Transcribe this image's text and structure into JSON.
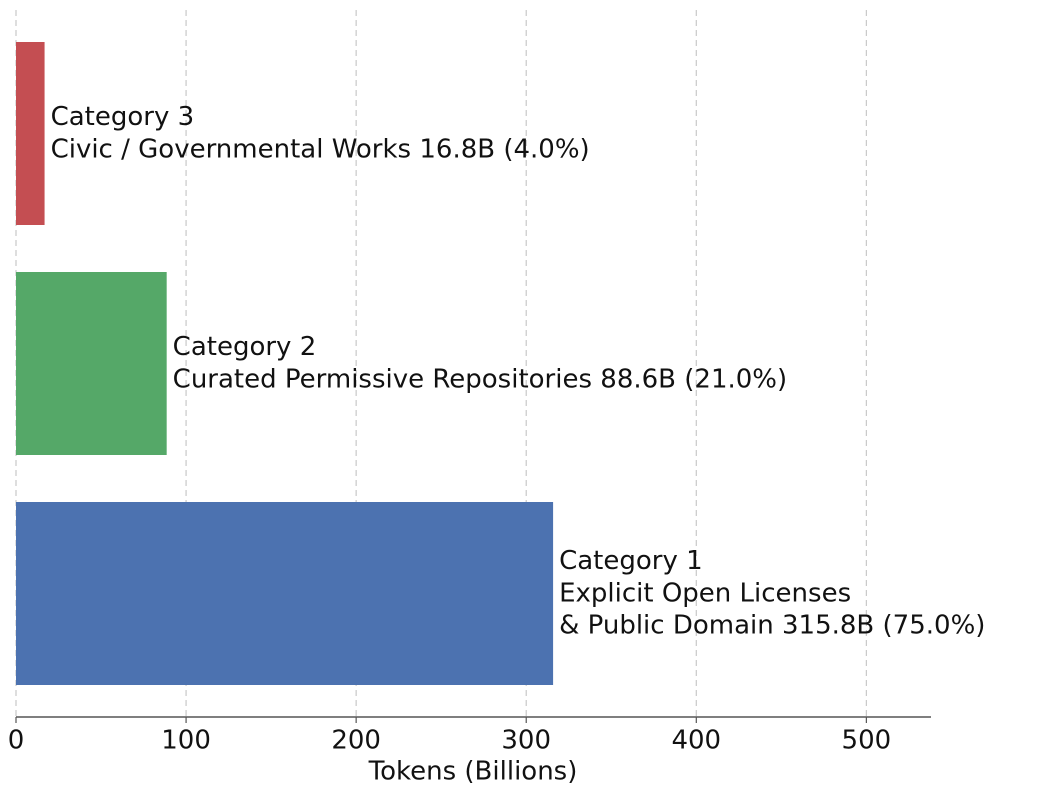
{
  "chart_data": {
    "type": "barh",
    "xlabel": "Tokens (Billions)",
    "categories": [
      "Category 1",
      "Category 2",
      "Category 3"
    ],
    "descriptions": [
      [
        "Explicit Open Licenses",
        "& Public Domain"
      ],
      [
        "Curated Permissive Repositories"
      ],
      [
        "Civic / Governmental Works"
      ]
    ],
    "values": [
      315.8,
      88.6,
      16.8
    ],
    "value_labels": [
      "315.8B (75.0%)",
      "88.6B (21.0%)",
      "16.8B (4.0%)"
    ],
    "colors": [
      "#4c72b0",
      "#55a868",
      "#c44e52"
    ],
    "xlim": [
      0,
      538
    ],
    "xticks": [
      0,
      100,
      200,
      300,
      400,
      500
    ],
    "grid": true
  }
}
